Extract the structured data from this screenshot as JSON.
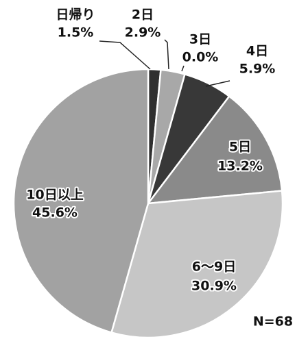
{
  "chart_data": {
    "type": "pie",
    "categories": [
      "日帰り",
      "2日",
      "3日",
      "4日",
      "5日",
      "6〜9日",
      "10日以上"
    ],
    "values": [
      1.5,
      2.9,
      0.0,
      5.9,
      13.2,
      30.9,
      45.6
    ],
    "value_labels": [
      "1.5%",
      "2.9%",
      "0.0%",
      "5.9%",
      "13.2%",
      "30.9%",
      "45.6%"
    ],
    "colors": [
      "#303030",
      "#a8a8a8",
      "#707070",
      "#383838",
      "#8a8a8a",
      "#c6c6c6",
      "#a2a2a2"
    ],
    "annotation": "N=68"
  }
}
